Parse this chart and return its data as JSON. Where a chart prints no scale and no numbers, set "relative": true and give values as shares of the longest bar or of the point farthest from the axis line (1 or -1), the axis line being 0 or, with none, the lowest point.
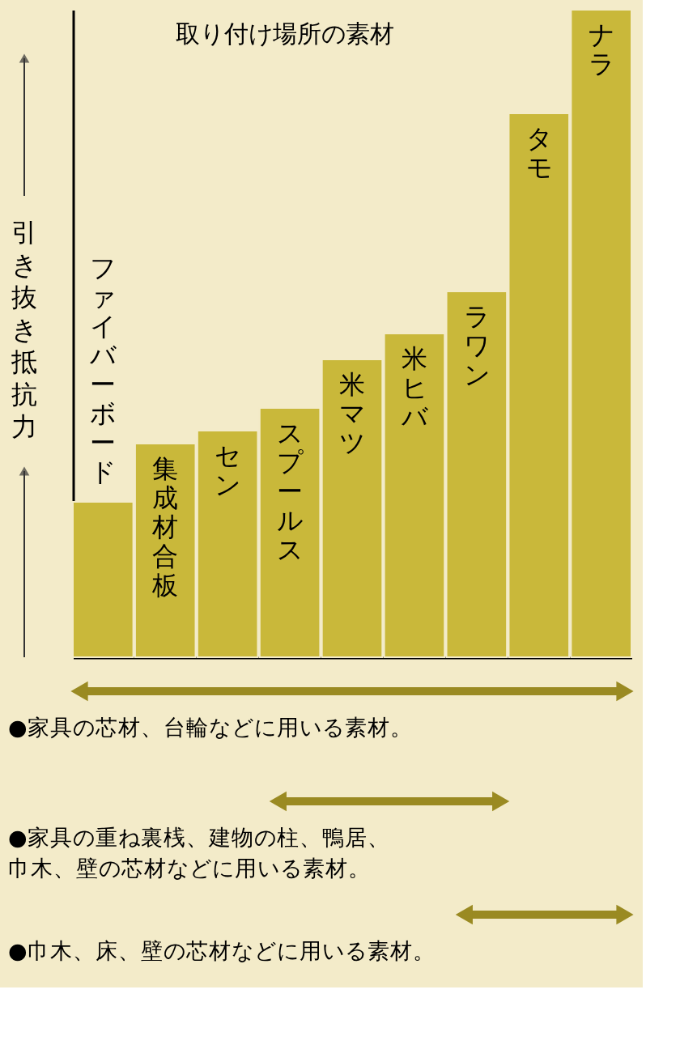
{
  "chart_data": {
    "type": "bar",
    "title": "取り付け場所の素材",
    "ylabel": "引き抜き抵抗力",
    "relative": true,
    "categories": [
      "ファイバーボード",
      "集成材合板",
      "セン",
      "スプールス",
      "米マツ",
      "米ヒバ",
      "ラワン",
      "タモ",
      "ナラ"
    ],
    "values": [
      0.24,
      0.33,
      0.35,
      0.385,
      0.46,
      0.5,
      0.565,
      0.84,
      1
    ],
    "color": "#c9b83a",
    "annotations": [
      "●家具の芯材、台輪などに用いる素材。",
      "●家具の重ね裏桟、建物の柱、鴨居、巾木、壁の芯材などに用いる素材。",
      "●巾木、床、壁の芯材などに用いる素材。"
    ]
  }
}
